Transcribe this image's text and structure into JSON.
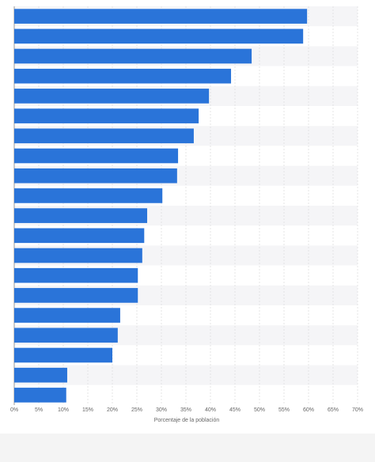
{
  "chart_data": {
    "type": "bar",
    "orientation": "horizontal",
    "x_label": "Porcentaje de la población",
    "categories": [
      null,
      null,
      null,
      null,
      null,
      null,
      null,
      null,
      null,
      null,
      null,
      null,
      null,
      null,
      null,
      null,
      null,
      null,
      null,
      null
    ],
    "values": [
      59.7,
      58.9,
      48.4,
      44.2,
      39.7,
      37.6,
      36.6,
      33.4,
      33.2,
      30.2,
      27.1,
      26.5,
      26.1,
      25.2,
      25.2,
      21.6,
      21.1,
      20.0,
      10.8,
      10.6
    ],
    "color": "#2a74d9",
    "xlim": [
      0,
      70
    ],
    "xticks": [
      {
        "value": 0,
        "label": "0%"
      },
      {
        "value": 5,
        "label": "5%"
      },
      {
        "value": 10,
        "label": "10%"
      },
      {
        "value": 15,
        "label": "15%"
      },
      {
        "value": 20,
        "label": "20%"
      },
      {
        "value": 25,
        "label": "25%"
      },
      {
        "value": 30,
        "label": "30%"
      },
      {
        "value": 35,
        "label": "35%"
      },
      {
        "value": 40,
        "label": "40%"
      },
      {
        "value": 45,
        "label": "45%"
      },
      {
        "value": 50,
        "label": "50%"
      },
      {
        "value": 55,
        "label": "55%"
      },
      {
        "value": 60,
        "label": "60%"
      },
      {
        "value": 65,
        "label": "65%"
      },
      {
        "value": 70,
        "label": "70%"
      }
    ],
    "grid": true
  }
}
